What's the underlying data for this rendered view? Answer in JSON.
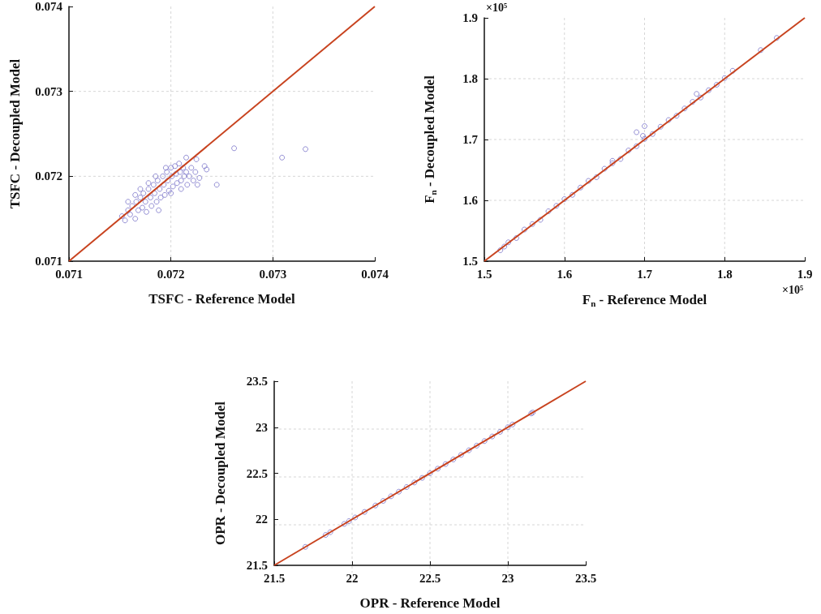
{
  "chart_data": [
    {
      "type": "scatter",
      "xlabel": "TSFC - Reference Model",
      "ylabel": "TSFC - Decoupled Model",
      "xlim": [
        0.071,
        0.074
      ],
      "ylim": [
        0.071,
        0.074
      ],
      "xticks": [
        0.071,
        0.072,
        0.073,
        0.074
      ],
      "yticks": [
        0.071,
        0.072,
        0.073,
        0.074
      ],
      "grid": true,
      "marker": "circle",
      "series": [
        {
          "color": "#7b74c9",
          "x": [
            0.07152,
            0.07155,
            0.07158,
            0.0716,
            0.07162,
            0.07165,
            0.07166,
            0.07168,
            0.0717,
            0.07172,
            0.07173,
            0.07175,
            0.07176,
            0.07178,
            0.0718,
            0.07181,
            0.07183,
            0.07184,
            0.07186,
            0.07187,
            0.07189,
            0.0719,
            0.07192,
            0.07193,
            0.07194,
            0.07196,
            0.07197,
            0.07198,
            0.072,
            0.07201,
            0.07202,
            0.07204,
            0.07205,
            0.07206,
            0.07208,
            0.07209,
            0.0721,
            0.07212,
            0.07213,
            0.07215,
            0.07216,
            0.07218,
            0.0722,
            0.07222,
            0.07224,
            0.07226,
            0.07228,
            0.07185,
            0.07178,
            0.0717,
            0.07165,
            0.07195,
            0.07158,
            0.07188,
            0.072,
            0.0721,
            0.07215,
            0.07225,
            0.07233,
            0.07235,
            0.07245,
            0.07262,
            0.07309,
            0.07332
          ],
          "values": [
            0.07153,
            0.07148,
            0.0716,
            0.07155,
            0.07165,
            0.0715,
            0.0717,
            0.0716,
            0.07175,
            0.07163,
            0.0718,
            0.0717,
            0.07158,
            0.07185,
            0.07175,
            0.07165,
            0.0719,
            0.0718,
            0.0717,
            0.07195,
            0.07185,
            0.07175,
            0.072,
            0.0719,
            0.07178,
            0.07205,
            0.07195,
            0.07183,
            0.0721,
            0.072,
            0.07188,
            0.07212,
            0.07203,
            0.07192,
            0.07215,
            0.07205,
            0.07195,
            0.0721,
            0.072,
            0.07205,
            0.0719,
            0.072,
            0.0721,
            0.07195,
            0.07205,
            0.0719,
            0.07198,
            0.072,
            0.07192,
            0.07185,
            0.07178,
            0.0721,
            0.0717,
            0.0716,
            0.0718,
            0.07185,
            0.07222,
            0.0722,
            0.07212,
            0.07208,
            0.0719,
            0.07233,
            0.07222,
            0.07232
          ]
        },
        {
          "type": "line",
          "marker": "none",
          "color": "#c8431f",
          "x": [
            0.071,
            0.074
          ],
          "values": [
            0.071,
            0.074
          ]
        }
      ]
    },
    {
      "type": "scatter",
      "xlabel": "F$_{n}$ - Reference Model",
      "ylabel": "F$_{n}$ - Decoupled Model",
      "annotations": [
        "×10⁵",
        "×10⁵"
      ],
      "xlim": [
        1.5,
        1.9
      ],
      "ylim": [
        1.5,
        1.9
      ],
      "xticks": [
        1.5,
        1.6,
        1.7,
        1.8,
        1.9
      ],
      "yticks": [
        1.5,
        1.6,
        1.7,
        1.8,
        1.9
      ],
      "grid": true,
      "marker": "circle",
      "series": [
        {
          "color": "#7b74c9",
          "x": [
            1.52,
            1.525,
            1.53,
            1.54,
            1.55,
            1.56,
            1.57,
            1.58,
            1.59,
            1.6,
            1.61,
            1.62,
            1.63,
            1.64,
            1.65,
            1.66,
            1.67,
            1.68,
            1.69,
            1.7,
            1.71,
            1.72,
            1.73,
            1.74,
            1.75,
            1.76,
            1.77,
            1.78,
            1.79,
            1.8,
            1.81,
            1.845,
            1.865,
            1.66,
            1.69,
            1.7,
            1.698,
            1.765
          ],
          "values": [
            1.518,
            1.524,
            1.531,
            1.538,
            1.552,
            1.561,
            1.568,
            1.582,
            1.591,
            1.602,
            1.609,
            1.621,
            1.632,
            1.638,
            1.652,
            1.661,
            1.668,
            1.682,
            1.689,
            1.701,
            1.709,
            1.721,
            1.732,
            1.739,
            1.751,
            1.762,
            1.769,
            1.781,
            1.79,
            1.801,
            1.813,
            1.847,
            1.867,
            1.665,
            1.712,
            1.722,
            1.706,
            1.775
          ]
        },
        {
          "type": "line",
          "marker": "none",
          "color": "#c8431f",
          "x": [
            1.5,
            1.9
          ],
          "values": [
            1.5,
            1.9
          ]
        }
      ]
    },
    {
      "type": "scatter",
      "xlabel": "OPR - Reference Model",
      "ylabel": "OPR - Decoupled Model",
      "xlim": [
        21.5,
        23.5
      ],
      "ylim": [
        21.5,
        23.5
      ],
      "xticks": [
        21.5,
        22,
        22.5,
        23,
        23.5
      ],
      "yticks": [
        21.5,
        22,
        22.5,
        23,
        23.5
      ],
      "grid": true,
      "marker": "circle",
      "series": [
        {
          "color": "#7b74c9",
          "x": [
            21.7,
            21.83,
            21.86,
            21.95,
            21.98,
            22.02,
            22.08,
            22.15,
            22.2,
            22.25,
            22.3,
            22.35,
            22.4,
            22.45,
            22.5,
            22.55,
            22.6,
            22.65,
            22.7,
            22.75,
            22.8,
            22.85,
            22.9,
            22.95,
            23.0,
            23.03,
            23.15,
            23.16
          ],
          "values": [
            21.7,
            21.83,
            21.86,
            21.95,
            21.98,
            22.02,
            22.08,
            22.15,
            22.2,
            22.25,
            22.3,
            22.35,
            22.4,
            22.45,
            22.5,
            22.55,
            22.6,
            22.65,
            22.7,
            22.75,
            22.8,
            22.85,
            22.9,
            22.95,
            23.0,
            23.03,
            23.15,
            23.16
          ]
        },
        {
          "type": "line",
          "marker": "none",
          "color": "#c8431f",
          "x": [
            21.5,
            23.5
          ],
          "values": [
            21.5,
            23.5
          ]
        }
      ]
    }
  ]
}
